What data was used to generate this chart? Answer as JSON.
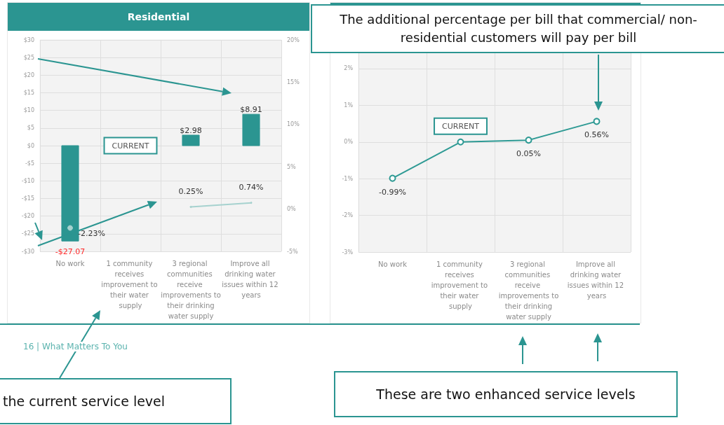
{
  "chart_data": [
    {
      "type": "bar",
      "title": "Residential",
      "categories": [
        "No work",
        "1 community receives improvement to their water supply",
        "3 regional communities receive improvements to their drinking water supply",
        "Improve all drinking water issues within 12 years"
      ],
      "series": [
        {
          "type": "bar",
          "color": "#2b9591",
          "values": [
            -27.07,
            0,
            2.98,
            8.91
          ],
          "value_labels": [
            "-$27.07",
            "CURRENT",
            "$2.98",
            "$8.91"
          ]
        },
        {
          "type": "line",
          "axis": "y2",
          "color": "#a6d2cf",
          "values": [
            -2.23,
            null,
            0.25,
            0.74
          ],
          "value_labels": [
            "-2.23%",
            null,
            "0.25%",
            "0.74%"
          ]
        }
      ],
      "ylim": [
        -30,
        30
      ],
      "yticks": [
        {
          "value": -30,
          "label": "-$30"
        },
        {
          "value": -25,
          "label": "-$25"
        },
        {
          "value": -20,
          "label": "-$20"
        },
        {
          "value": -15,
          "label": "-$15"
        },
        {
          "value": -10,
          "label": "-$10"
        },
        {
          "value": -5,
          "label": "-$5"
        },
        {
          "value": 0,
          "label": "$0"
        },
        {
          "value": 5,
          "label": "$5"
        },
        {
          "value": 10,
          "label": "$10"
        },
        {
          "value": 15,
          "label": "$15"
        },
        {
          "value": 20,
          "label": "$20"
        },
        {
          "value": 25,
          "label": "$25"
        },
        {
          "value": 30,
          "label": "$30"
        }
      ],
      "y2lim": [
        -5,
        20
      ],
      "y2ticks": [
        {
          "value": -5,
          "label": "-5%"
        },
        {
          "value": 0,
          "label": "0%"
        },
        {
          "value": 5,
          "label": "5%"
        },
        {
          "value": 10,
          "label": "10%"
        },
        {
          "value": 15,
          "label": "15%"
        },
        {
          "value": 20,
          "label": "20%"
        }
      ],
      "grid": true,
      "marker": "none",
      "annotations": [
        "the current service level",
        "16 | What Matters To You"
      ]
    },
    {
      "type": "line",
      "categories": [
        "No work",
        "1 community receives improvement to their water supply",
        "3 regional communities receive improvements to their drinking water supply",
        "Improve all drinking water issues within 12 years"
      ],
      "series": [
        {
          "color": "#2e9a94",
          "values": [
            -0.99,
            0,
            0.05,
            0.56
          ],
          "value_labels": [
            "-0.99%",
            "CURRENT",
            "0.05%",
            "0.56%"
          ]
        }
      ],
      "ylim": [
        -3,
        2.8
      ],
      "yticks": [
        {
          "value": -3,
          "label": "-3%"
        },
        {
          "value": -2,
          "label": "-2%"
        },
        {
          "value": -1,
          "label": "-1%"
        },
        {
          "value": 0,
          "label": "0%"
        },
        {
          "value": 1,
          "label": "1%"
        },
        {
          "value": 2,
          "label": "2%"
        }
      ],
      "grid": true,
      "marker": "circle",
      "annotations": [
        "The additional percentage per bill that commercial/ non-residential customers will pay per bill",
        "These are two enhanced service levels"
      ]
    }
  ]
}
